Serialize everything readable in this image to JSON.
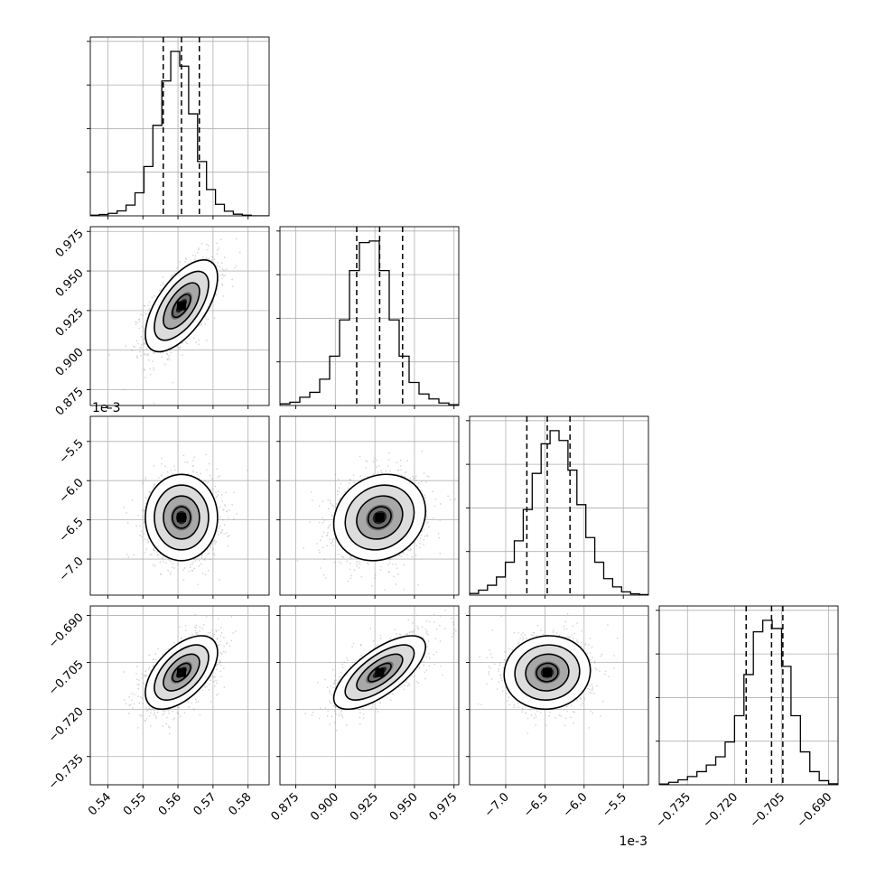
{
  "chart_data": {
    "type": "corner",
    "grid": true,
    "quantiles": [
      0.16,
      0.5,
      0.84
    ],
    "exponent_offsets": [
      {
        "label": "1e-3",
        "position": "parameter-3 y-axis top"
      },
      {
        "label": "1e-3",
        "position": "parameter-3 x-axis bottom"
      }
    ],
    "parameters": [
      {
        "median": 0.561,
        "q16": 0.5558,
        "q84": 0.5661,
        "range": [
          0.535,
          0.586
        ],
        "ticks": [
          0.54,
          0.55,
          0.56,
          0.57,
          0.58
        ],
        "tick_labels": [
          "0.54",
          "0.55",
          "0.56",
          "0.57",
          "0.58"
        ],
        "hist": [
          0.004,
          0.008,
          0.015,
          0.03,
          0.065,
          0.14,
          0.3,
          0.55,
          0.82,
          1.0,
          0.91,
          0.62,
          0.33,
          0.16,
          0.07,
          0.028,
          0.01,
          0.004,
          0.0,
          0.0
        ]
      },
      {
        "median": 0.928,
        "q16": 0.9135,
        "q84": 0.9425,
        "range": [
          0.865,
          0.978
        ],
        "ticks": [
          0.875,
          0.9,
          0.925,
          0.95,
          0.975
        ],
        "tick_labels": [
          "0.875",
          "0.900",
          "0.925",
          "0.950",
          "0.975"
        ],
        "hist": [
          0.01,
          0.02,
          0.05,
          0.08,
          0.16,
          0.3,
          0.52,
          0.82,
          0.99,
          1.0,
          0.82,
          0.52,
          0.3,
          0.14,
          0.07,
          0.04,
          0.015,
          0.005
        ]
      },
      {
        "median": -6.47,
        "q16": -6.73,
        "q84": -6.18,
        "range": [
          -7.46,
          -5.18
        ],
        "ticks": [
          -7.0,
          -6.5,
          -6.0,
          -5.5
        ],
        "tick_labels": [
          "−7.0",
          "−6.5",
          "−6.0",
          "−5.5"
        ],
        "hist": [
          0.01,
          0.03,
          0.06,
          0.11,
          0.2,
          0.33,
          0.52,
          0.74,
          0.92,
          1.0,
          0.94,
          0.76,
          0.55,
          0.35,
          0.2,
          0.1,
          0.05,
          0.02,
          0.008,
          0.003
        ]
      },
      {
        "median": -0.7082,
        "q16": -0.7163,
        "q84": -0.7046,
        "range": [
          -0.744,
          -0.687
        ],
        "ticks": [
          -0.735,
          -0.72,
          -0.705,
          -0.69
        ],
        "tick_labels": [
          "−0.735",
          "−0.720",
          "−0.705",
          "−0.690"
        ],
        "hist": [
          0.005,
          0.015,
          0.03,
          0.05,
          0.08,
          0.12,
          0.17,
          0.26,
          0.42,
          0.67,
          0.93,
          1.0,
          0.95,
          0.72,
          0.42,
          0.2,
          0.08,
          0.025,
          0.006
        ]
      }
    ],
    "correlations": [
      [
        0,
        1,
        0.62
      ],
      [
        0,
        2,
        0.0
      ],
      [
        0,
        3,
        0.55
      ],
      [
        1,
        2,
        0.15
      ],
      [
        1,
        3,
        0.7
      ],
      [
        2,
        3,
        0.05
      ]
    ]
  }
}
